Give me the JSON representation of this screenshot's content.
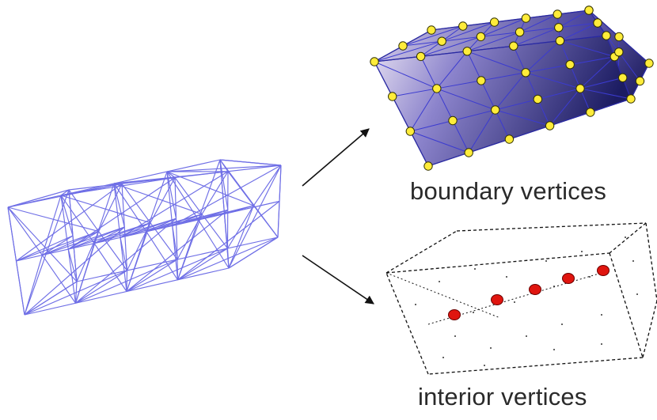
{
  "labels": {
    "boundary": "boundary vertices",
    "interior": "interior vertices"
  },
  "colors": {
    "wireframe": "#6f6fe6",
    "solid_light": "#e8e2f2",
    "solid_dark": "#1c1c62",
    "solid_edge": "#3b3bd0",
    "boundary_vertex": "#ffec3a",
    "interior_vertex": "#e0150f",
    "arrow": "#111111"
  },
  "icons": {
    "wireframe_mesh": "wireframe-mesh-icon",
    "solid_mesh": "solid-mesh-icon",
    "dashed_box": "dashed-box-icon",
    "arrow": "arrow-icon"
  }
}
